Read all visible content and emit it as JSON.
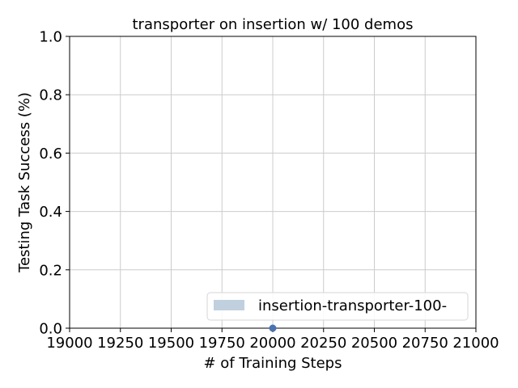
{
  "chart_data": {
    "type": "line",
    "title": "transporter on insertion w/ 100 demos",
    "xlabel": "# of Training Steps",
    "ylabel": "Testing Task Success (%)",
    "xlim": [
      19000,
      21000
    ],
    "ylim": [
      0.0,
      1.0
    ],
    "x_ticks": [
      "19000",
      "19250",
      "19500",
      "19750",
      "20000",
      "20250",
      "20500",
      "20750",
      "21000"
    ],
    "y_ticks": [
      "0.0",
      "0.2",
      "0.4",
      "0.6",
      "0.8",
      "1.0"
    ],
    "grid": true,
    "legend_position": "lower-right",
    "series": [
      {
        "name": "insertion-transporter-100-",
        "color": "#4c72b0",
        "band_color": "#c1d0de",
        "x": [
          20000
        ],
        "y": [
          0.0
        ]
      }
    ]
  }
}
